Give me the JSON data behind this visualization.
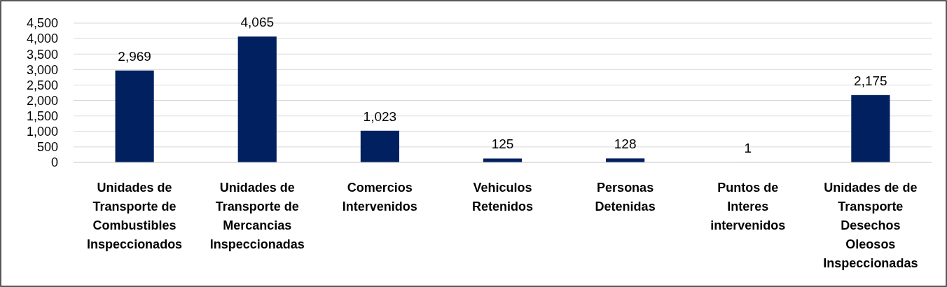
{
  "chart_data": {
    "type": "bar",
    "categories": [
      "Unidades de Transporte de Combustibles Inspeccionados",
      "Unidades de Transporte de Mercancias Inspeccionadas",
      "Comercios Intervenidos",
      "Vehiculos Retenidos",
      "Personas Detenidas",
      "Puntos de Interes intervenidos",
      "Unidades de de Transporte Desechos Oleosos Inspeccionadas"
    ],
    "values": [
      2969,
      4065,
      1023,
      125,
      128,
      1,
      2175
    ],
    "color": "#002060",
    "ylim": [
      0,
      4500
    ],
    "yticks": [
      {
        "value": 0,
        "label": "0"
      },
      {
        "value": 500,
        "label": "500"
      },
      {
        "value": 1000,
        "label": "1,000"
      },
      {
        "value": 1500,
        "label": "1,500"
      },
      {
        "value": 2000,
        "label": "2,000"
      },
      {
        "value": 2500,
        "label": "2,500"
      },
      {
        "value": 3000,
        "label": "3,000"
      },
      {
        "value": 3500,
        "label": "3,500"
      },
      {
        "value": 4000,
        "label": "4,000"
      },
      {
        "value": 4500,
        "label": "4,500"
      }
    ],
    "value_labels": [
      "2,969",
      "4,065",
      "1,023",
      "125",
      "128",
      "1",
      "2,175"
    ],
    "grid": "y"
  }
}
